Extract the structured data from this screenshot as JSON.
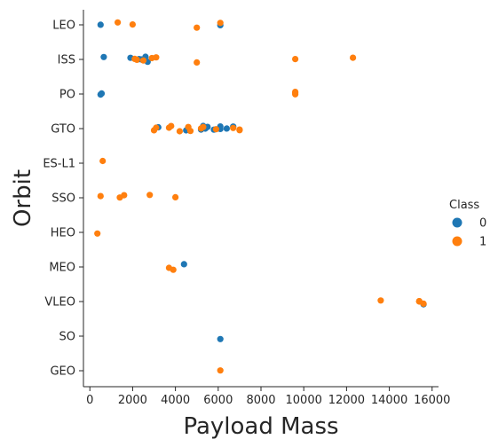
{
  "chart_data": {
    "type": "scatter",
    "title": "",
    "xlabel": "Payload Mass",
    "ylabel": "Orbit",
    "xlim": [
      -300,
      16300
    ],
    "x_ticks": [
      0,
      2000,
      4000,
      6000,
      8000,
      10000,
      12000,
      14000,
      16000
    ],
    "categories": [
      "LEO",
      "ISS",
      "PO",
      "GTO",
      "ES-L1",
      "SSO",
      "HEO",
      "MEO",
      "VLEO",
      "SO",
      "GEO"
    ],
    "legend": {
      "title": "Class",
      "placement": "right"
    },
    "grid": false,
    "series": [
      {
        "name": "0",
        "color": "#1f77b4",
        "points": [
          {
            "x": 500,
            "y": "LEO"
          },
          {
            "x": 6100,
            "y": "LEO"
          },
          {
            "x": 650,
            "y": "ISS"
          },
          {
            "x": 1900,
            "y": "ISS"
          },
          {
            "x": 2300,
            "y": "ISS"
          },
          {
            "x": 2400,
            "y": "ISS"
          },
          {
            "x": 2600,
            "y": "ISS"
          },
          {
            "x": 2700,
            "y": "ISS"
          },
          {
            "x": 500,
            "y": "PO"
          },
          {
            "x": 550,
            "y": "PO"
          },
          {
            "x": 3200,
            "y": "GTO"
          },
          {
            "x": 4500,
            "y": "GTO"
          },
          {
            "x": 5200,
            "y": "GTO"
          },
          {
            "x": 5300,
            "y": "GTO"
          },
          {
            "x": 5400,
            "y": "GTO"
          },
          {
            "x": 5500,
            "y": "GTO"
          },
          {
            "x": 5800,
            "y": "GTO"
          },
          {
            "x": 6100,
            "y": "GTO"
          },
          {
            "x": 6100,
            "y": "GTO"
          },
          {
            "x": 6400,
            "y": "GTO"
          },
          {
            "x": 6700,
            "y": "GTO"
          },
          {
            "x": 4400,
            "y": "MEO"
          },
          {
            "x": 15600,
            "y": "VLEO"
          },
          {
            "x": 6100,
            "y": "SO"
          }
        ]
      },
      {
        "name": "1",
        "color": "#ff7f0e",
        "points": [
          {
            "x": 1300,
            "y": "LEO"
          },
          {
            "x": 2000,
            "y": "LEO"
          },
          {
            "x": 5000,
            "y": "LEO"
          },
          {
            "x": 6100,
            "y": "LEO"
          },
          {
            "x": 2100,
            "y": "ISS"
          },
          {
            "x": 2200,
            "y": "ISS"
          },
          {
            "x": 2500,
            "y": "ISS"
          },
          {
            "x": 2900,
            "y": "ISS"
          },
          {
            "x": 3100,
            "y": "ISS"
          },
          {
            "x": 5000,
            "y": "ISS"
          },
          {
            "x": 9600,
            "y": "ISS"
          },
          {
            "x": 12300,
            "y": "ISS"
          },
          {
            "x": 9600,
            "y": "PO"
          },
          {
            "x": 9600,
            "y": "PO"
          },
          {
            "x": 9600,
            "y": "PO"
          },
          {
            "x": 3000,
            "y": "GTO"
          },
          {
            "x": 3100,
            "y": "GTO"
          },
          {
            "x": 3700,
            "y": "GTO"
          },
          {
            "x": 3800,
            "y": "GTO"
          },
          {
            "x": 4200,
            "y": "GTO"
          },
          {
            "x": 4600,
            "y": "GTO"
          },
          {
            "x": 4700,
            "y": "GTO"
          },
          {
            "x": 5200,
            "y": "GTO"
          },
          {
            "x": 5300,
            "y": "GTO"
          },
          {
            "x": 5900,
            "y": "GTO"
          },
          {
            "x": 6700,
            "y": "GTO"
          },
          {
            "x": 7000,
            "y": "GTO"
          },
          {
            "x": 7000,
            "y": "GTO"
          },
          {
            "x": 600,
            "y": "ES-L1"
          },
          {
            "x": 500,
            "y": "SSO"
          },
          {
            "x": 1400,
            "y": "SSO"
          },
          {
            "x": 1600,
            "y": "SSO"
          },
          {
            "x": 2800,
            "y": "SSO"
          },
          {
            "x": 4000,
            "y": "SSO"
          },
          {
            "x": 350,
            "y": "HEO"
          },
          {
            "x": 3700,
            "y": "MEO"
          },
          {
            "x": 3900,
            "y": "MEO"
          },
          {
            "x": 13600,
            "y": "VLEO"
          },
          {
            "x": 15400,
            "y": "VLEO"
          },
          {
            "x": 15400,
            "y": "VLEO"
          },
          {
            "x": 15400,
            "y": "VLEO"
          },
          {
            "x": 15600,
            "y": "VLEO"
          },
          {
            "x": 6100,
            "y": "GEO"
          }
        ]
      }
    ]
  }
}
